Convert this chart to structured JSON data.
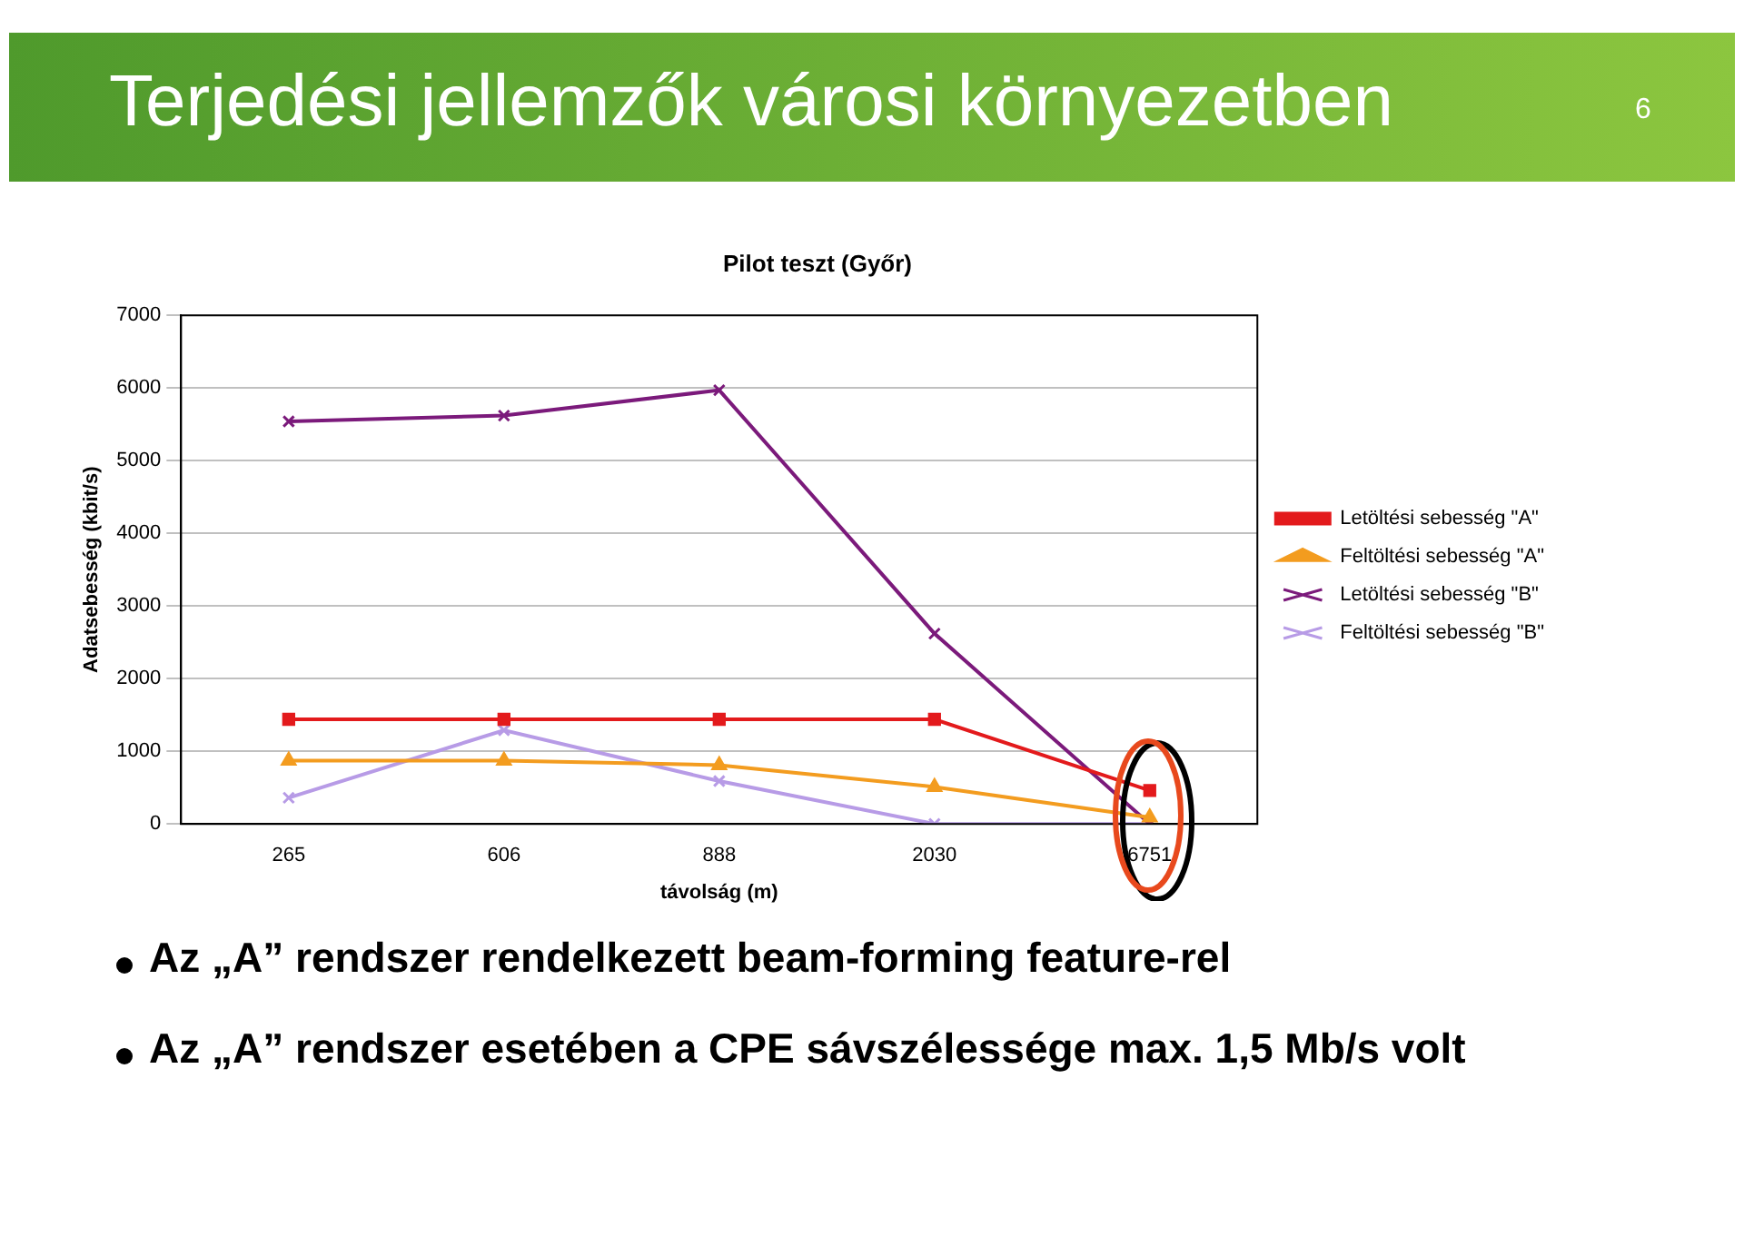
{
  "chart_data": {
    "type": "line",
    "title": "Terjedési jellemzők városi környezetben",
    "subtitle": "Pilot teszt (Győr)",
    "xlabel": "távolság (m)",
    "ylabel": "Adatsebesség (kbit/s)",
    "categories": [
      "265",
      "606",
      "888",
      "2030",
      "6751"
    ],
    "series": [
      {
        "name": "Letöltési sebesség \"A\"",
        "color": "#e31a1c",
        "marker": "square",
        "values": [
          1440,
          1440,
          1440,
          1440,
          460
        ]
      },
      {
        "name": "Feltöltési sebesség \"A\"",
        "color": "#f39c1f",
        "marker": "triangle",
        "values": [
          870,
          870,
          810,
          510,
          90
        ]
      },
      {
        "name": "Letöltési sebesség \"B\"",
        "color": "#7b1a7b",
        "marker": "cross",
        "values": [
          5540,
          5620,
          5970,
          2620,
          0
        ]
      },
      {
        "name": "Feltöltési sebesség \"B\"",
        "color": "#b79be6",
        "marker": "cross",
        "values": [
          360,
          1290,
          590,
          0,
          0
        ]
      }
    ],
    "ylim": [
      0,
      7000
    ],
    "yticks": [
      0,
      1000,
      2000,
      3000,
      4000,
      5000,
      6000,
      7000
    ],
    "grid": "y",
    "legend": "right",
    "annotations": [
      "6",
      "Az „A” rendszer rendelkezett beam-forming feature-rel",
      "Az „A” rendszer esetében a CPE sávszélessége max. 1,5 Mb/s volt"
    ]
  }
}
